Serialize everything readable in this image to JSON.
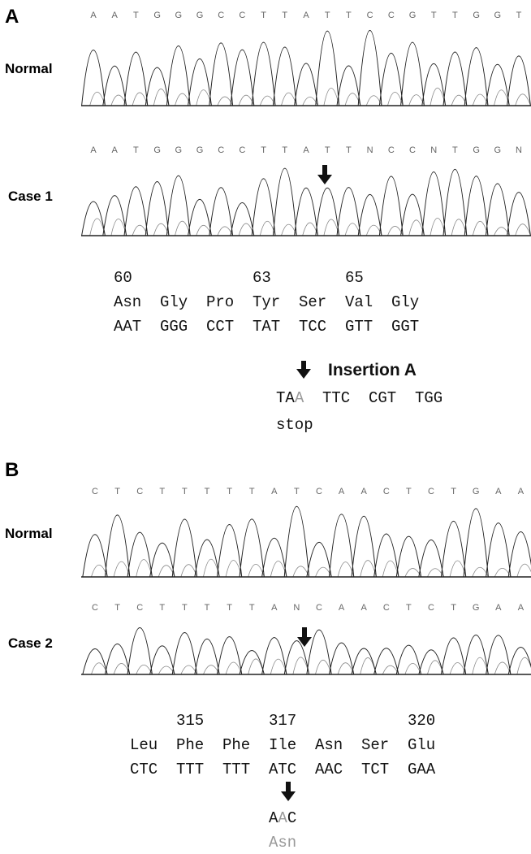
{
  "panels": [
    {
      "label": "A",
      "traces": [
        {
          "name": "Normal",
          "bases": [
            "A",
            "A",
            "T",
            "G",
            "G",
            "G",
            "C",
            "C",
            "T",
            "T",
            "A",
            "T",
            "T",
            "C",
            "C",
            "G",
            "T",
            "T",
            "G",
            "G",
            "T"
          ]
        },
        {
          "name": "Case 1",
          "bases": [
            "A",
            "A",
            "T",
            "G",
            "G",
            "G",
            "C",
            "C",
            "T",
            "T",
            "A",
            "T",
            "T",
            "N",
            "C",
            "C",
            "N",
            "T",
            "G",
            "G",
            "N"
          ]
        }
      ],
      "codon_numbers": [
        "60",
        null,
        null,
        "63",
        null,
        "65",
        null
      ],
      "amino_acids": [
        "Asn",
        "Gly",
        "Pro",
        "Tyr",
        "Ser",
        "Val",
        "Gly"
      ],
      "codons": [
        "AAT",
        "GGG",
        "CCT",
        "TAT",
        "TCC",
        "GTT",
        "GGT"
      ],
      "mutation_label": "Insertion A",
      "mutant_first": {
        "kept": "TA",
        "changed": "A"
      },
      "mutant_rest": [
        "TTC",
        "CGT",
        "TGG"
      ],
      "mutant_effect": "stop"
    },
    {
      "label": "B",
      "traces": [
        {
          "name": "Normal",
          "bases": [
            "C",
            "T",
            "C",
            "T",
            "T",
            "T",
            "T",
            "T",
            "A",
            "T",
            "C",
            "A",
            "A",
            "C",
            "T",
            "C",
            "T",
            "G",
            "A",
            "A"
          ]
        },
        {
          "name": "Case 2",
          "bases": [
            "C",
            "T",
            "C",
            "T",
            "T",
            "T",
            "T",
            "T",
            "A",
            "N",
            "C",
            "A",
            "A",
            "C",
            "T",
            "C",
            "T",
            "G",
            "A",
            "A"
          ]
        }
      ],
      "codon_numbers": [
        null,
        "315",
        null,
        "317",
        null,
        null,
        "320"
      ],
      "amino_acids": [
        "Leu",
        "Phe",
        "Phe",
        "Ile",
        "Asn",
        "Ser",
        "Glu"
      ],
      "codons": [
        "CTC",
        "TTT",
        "TTT",
        "ATC",
        "AAC",
        "TCT",
        "GAA"
      ],
      "mutant_codon": {
        "before": "A",
        "changed": "A",
        "after": "C"
      },
      "mutant_amino_acid": "Asn"
    }
  ]
}
